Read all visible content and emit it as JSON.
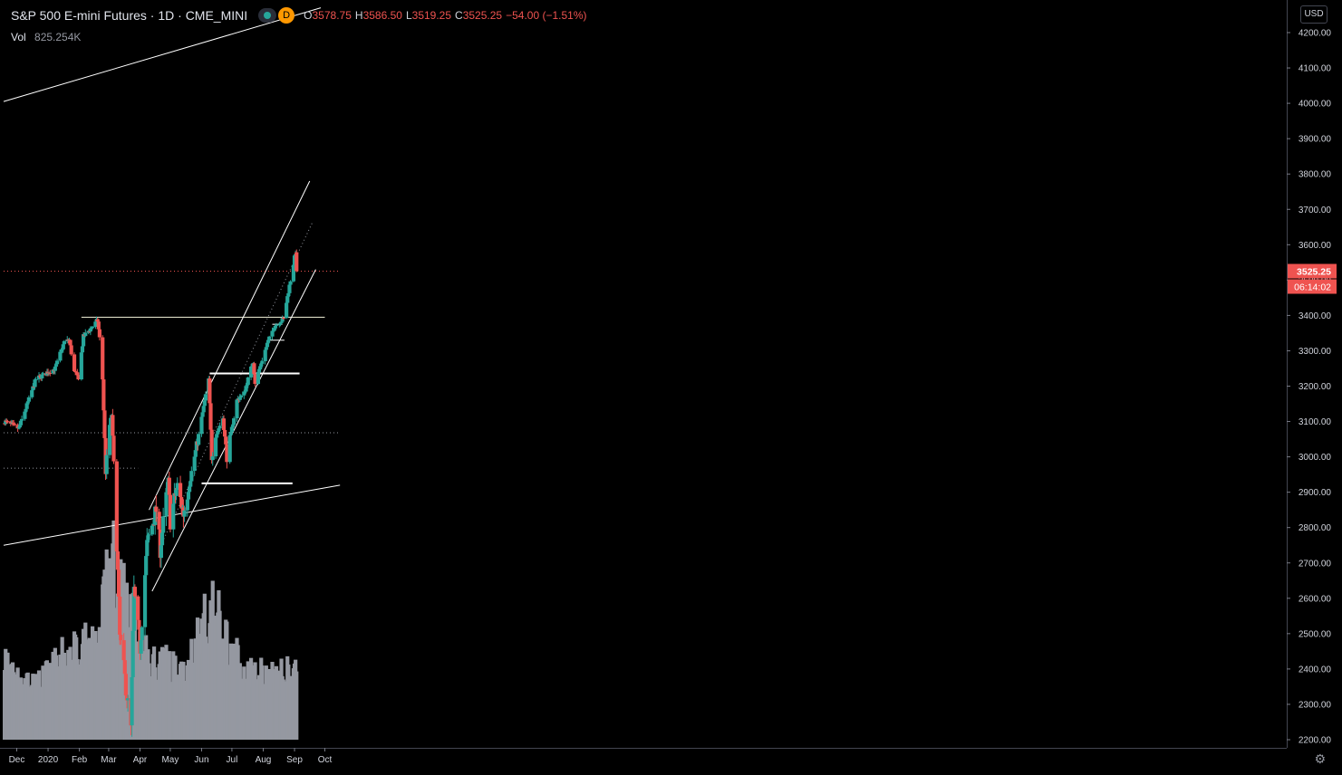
{
  "header": {
    "symbol_title": "S&P 500 E-mini Futures · 1D · CME_MINI",
    "badge": "D",
    "ohlc": [
      {
        "key": "O",
        "value": "3578.75"
      },
      {
        "key": "H",
        "value": "3586.50"
      },
      {
        "key": "L",
        "value": "3519.25"
      },
      {
        "key": "C",
        "value": "3525.25"
      },
      {
        "key": "",
        "value": "−54.00 (−1.51%)"
      }
    ],
    "volume_label": "Vol",
    "volume_value": "825.254K"
  },
  "currency_button": "USD",
  "settings_icon": "gear-icon",
  "last_price_label": "3525.25",
  "countdown_label": "06:14:02",
  "colors": {
    "up": "#26a69a",
    "down": "#ef5350",
    "volume": "#9598a1",
    "background": "#000000",
    "lines": "#ffffff",
    "resistance": "#f5f5dc",
    "price_tag": "#ef5350"
  },
  "chart_data": {
    "type": "candlestick",
    "title": "S&P 500 E-mini Futures · 1D · CME_MINI",
    "x_tick_labels": [
      "Dec",
      "2020",
      "Feb",
      "Mar",
      "Apr",
      "May",
      "Jun",
      "Jul",
      "Aug",
      "Sep",
      "Oct"
    ],
    "y_ticks": [
      2200,
      2300,
      2400,
      2500,
      2600,
      2700,
      2800,
      2900,
      3000,
      3100,
      3200,
      3300,
      3400,
      3500,
      3600,
      3700,
      3800,
      3900,
      4000,
      4100,
      4200
    ],
    "y_tick_labels": [
      "2200.00",
      "2300.00",
      "2400.00",
      "2500.00",
      "2600.00",
      "2700.00",
      "2800.00",
      "2900.00",
      "3000.00",
      "3100.00",
      "3200.00",
      "3300.00",
      "3400.00",
      "3500.00",
      "3600.00",
      "3700.00",
      "3800.00",
      "3900.00",
      "4000.00",
      "4100.00",
      "4200.00"
    ],
    "ylim": [
      2190,
      4250
    ],
    "last_price": 3525.25,
    "grid": false,
    "anchors": [
      {
        "date": "2019-11-19",
        "price": 3100
      },
      {
        "date": "2019-12-03",
        "price": 3080
      },
      {
        "date": "2019-12-20",
        "price": 3220
      },
      {
        "date": "2020-01-08",
        "price": 3250
      },
      {
        "date": "2020-01-17",
        "price": 3325
      },
      {
        "date": "2020-01-22",
        "price": 3330
      },
      {
        "date": "2020-01-27",
        "price": 3240
      },
      {
        "date": "2020-01-31",
        "price": 3225
      },
      {
        "date": "2020-02-05",
        "price": 3340
      },
      {
        "date": "2020-02-19",
        "price": 3385
      },
      {
        "date": "2020-02-21",
        "price": 3335
      },
      {
        "date": "2020-02-24",
        "price": 3220
      },
      {
        "date": "2020-02-27",
        "price": 2960
      },
      {
        "date": "2020-03-02",
        "price": 3090
      },
      {
        "date": "2020-03-04",
        "price": 3120
      },
      {
        "date": "2020-03-09",
        "price": 2760
      },
      {
        "date": "2020-03-12",
        "price": 2490
      },
      {
        "date": "2020-03-16",
        "price": 2400
      },
      {
        "date": "2020-03-20",
        "price": 2300
      },
      {
        "date": "2020-03-23",
        "price": 2230
      },
      {
        "date": "2020-03-26",
        "price": 2620
      },
      {
        "date": "2020-04-01",
        "price": 2460
      },
      {
        "date": "2020-04-08",
        "price": 2750
      },
      {
        "date": "2020-04-17",
        "price": 2850
      },
      {
        "date": "2020-04-21",
        "price": 2740
      },
      {
        "date": "2020-04-29",
        "price": 2930
      },
      {
        "date": "2020-05-01",
        "price": 2820
      },
      {
        "date": "2020-05-08",
        "price": 2920
      },
      {
        "date": "2020-05-14",
        "price": 2840
      },
      {
        "date": "2020-05-27",
        "price": 3030
      },
      {
        "date": "2020-06-08",
        "price": 3220
      },
      {
        "date": "2020-06-11",
        "price": 3000
      },
      {
        "date": "2020-06-15",
        "price": 3060
      },
      {
        "date": "2020-06-22",
        "price": 3110
      },
      {
        "date": "2020-06-26",
        "price": 3000
      },
      {
        "date": "2020-07-06",
        "price": 3160
      },
      {
        "date": "2020-07-13",
        "price": 3180
      },
      {
        "date": "2020-07-22",
        "price": 3270
      },
      {
        "date": "2020-07-24",
        "price": 3210
      },
      {
        "date": "2020-08-05",
        "price": 3320
      },
      {
        "date": "2020-08-12",
        "price": 3370
      },
      {
        "date": "2020-08-21",
        "price": 3390
      },
      {
        "date": "2020-08-28",
        "price": 3500
      },
      {
        "date": "2020-09-02",
        "price": 3578.75
      },
      {
        "date": "2020-09-03",
        "price": 3525.25
      }
    ],
    "volume_profile": [
      {
        "date": "2019-11-19",
        "vol": 0.45
      },
      {
        "date": "2019-12-20",
        "vol": 0.3
      },
      {
        "date": "2020-01-31",
        "vol": 0.55
      },
      {
        "date": "2020-02-21",
        "vol": 0.5
      },
      {
        "date": "2020-02-28",
        "vol": 0.95
      },
      {
        "date": "2020-03-06",
        "vol": 1.0
      },
      {
        "date": "2020-03-20",
        "vol": 0.8
      },
      {
        "date": "2020-04-08",
        "vol": 0.45
      },
      {
        "date": "2020-05-15",
        "vol": 0.4
      },
      {
        "date": "2020-06-12",
        "vol": 0.75
      },
      {
        "date": "2020-07-10",
        "vol": 0.4
      },
      {
        "date": "2020-08-14",
        "vol": 0.35
      },
      {
        "date": "2020-09-03",
        "vol": 0.4
      }
    ],
    "drawings": [
      {
        "kind": "trendline",
        "name": "upper-long-trendline",
        "from": {
          "date": "2019-11-18",
          "price": 4005
        },
        "to": {
          "date": "2020-09-27",
          "price": 4270
        },
        "color": "#ffffff"
      },
      {
        "kind": "trendline",
        "name": "lower-long-trendline",
        "from": {
          "date": "2019-11-18",
          "price": 2750
        },
        "to": {
          "date": "2020-10-16",
          "price": 2920
        },
        "color": "#ffffff"
      },
      {
        "kind": "trendline",
        "name": "resistance-february-high",
        "from": {
          "date": "2020-02-03",
          "price": 3395
        },
        "to": {
          "date": "2020-10-01",
          "price": 3395
        },
        "color": "#f5f5dc"
      },
      {
        "kind": "hline",
        "name": "support-dotted-1",
        "from": {
          "date": "2019-11-18",
          "price": 3068
        },
        "to": {
          "date": "2020-10-16",
          "price": 3068
        },
        "style": "dotted"
      },
      {
        "kind": "hline",
        "name": "support-dotted-2",
        "from": {
          "date": "2019-11-18",
          "price": 2968
        },
        "to": {
          "date": "2020-03-30",
          "price": 2968
        },
        "style": "dotted"
      },
      {
        "kind": "trendline",
        "name": "channel-upper",
        "from": {
          "date": "2020-04-10",
          "price": 2850
        },
        "to": {
          "date": "2020-09-16",
          "price": 3780
        },
        "color": "#ffffff"
      },
      {
        "kind": "trendline",
        "name": "channel-lower",
        "from": {
          "date": "2020-04-13",
          "price": 2620
        },
        "to": {
          "date": "2020-09-22",
          "price": 3530
        },
        "color": "#ffffff"
      },
      {
        "kind": "trendline",
        "name": "channel-median",
        "from": {
          "date": "2020-04-20",
          "price": 2740
        },
        "to": {
          "date": "2020-09-19",
          "price": 3665
        },
        "style": "dotted"
      },
      {
        "kind": "trendline",
        "name": "box-top",
        "from": {
          "date": "2020-06-09",
          "price": 3236
        },
        "to": {
          "date": "2020-09-06",
          "price": 3236
        },
        "color": "#ffffff"
      },
      {
        "kind": "trendline",
        "name": "box-bottom",
        "from": {
          "date": "2020-06-01",
          "price": 2925
        },
        "to": {
          "date": "2020-08-30",
          "price": 2925
        },
        "color": "#ffffff"
      },
      {
        "kind": "trendline",
        "name": "august-range-bottom",
        "from": {
          "date": "2020-08-07",
          "price": 3330
        },
        "to": {
          "date": "2020-08-22",
          "price": 3330
        },
        "color": "#ffffff"
      },
      {
        "kind": "trendline",
        "name": "august-range-top",
        "from": {
          "date": "2020-08-10",
          "price": 3375
        },
        "to": {
          "date": "2020-08-20",
          "price": 3375
        },
        "color": "#ffffff"
      },
      {
        "kind": "hline",
        "name": "last-price-line",
        "from": {
          "date": "2019-11-18",
          "price": 3525.25
        },
        "to": {
          "date": "2020-10-16",
          "price": 3525.25
        },
        "style": "dotted",
        "color": "#ef5350"
      }
    ]
  }
}
